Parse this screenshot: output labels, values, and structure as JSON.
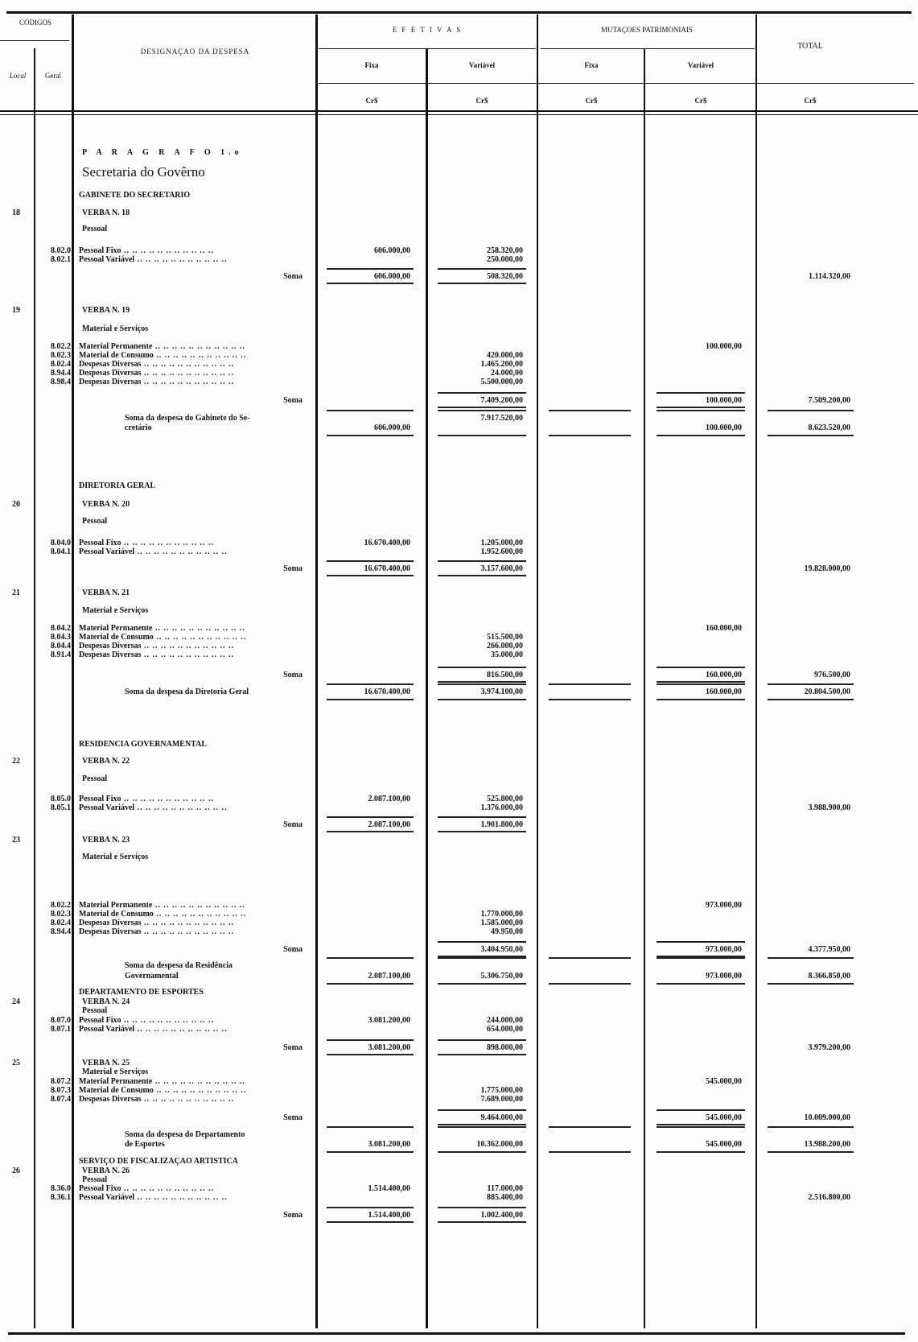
{
  "header": {
    "codigos": "CÓDIGOS",
    "local": "Local",
    "geral": "Geral",
    "designacao": "DESIGNAÇAO DA DESPESA",
    "efetivas": "E F E T  I V A S",
    "mutacoes": "MUTAÇOES  PATRIMONIAIS",
    "total": "TOTAL",
    "fixa": "Fixa",
    "variavel": "Variável",
    "currency": "Cr$"
  },
  "rows": [
    {
      "kind": "paragraph",
      "desc": "P A R A G R A F O  1.o"
    },
    {
      "kind": "title",
      "desc": "Secretaria do Govêrno"
    },
    {
      "kind": "section",
      "desc": "GABINETE DO SECRETARIO"
    },
    {
      "kind": "verba",
      "local": "18",
      "desc": "VERBA N. 18"
    },
    {
      "kind": "sub",
      "desc": "Pessoal"
    },
    {
      "kind": "item",
      "geral": "8.02.0",
      "desc": "Pessoal Fixo",
      "ef_fixa": "606.000,00",
      "ef_var": "258.320,00"
    },
    {
      "kind": "item",
      "geral": "8.02.1",
      "desc": "Pessoal Variável",
      "ef_var": "250.000,00"
    },
    {
      "kind": "soma",
      "desc": "Soma",
      "ef_fixa": "606.000,00",
      "ef_var": "508.320,00",
      "total": "1.114.320,00"
    },
    {
      "kind": "verba",
      "local": "19",
      "desc": "VERBA N. 19"
    },
    {
      "kind": "sub",
      "desc": "Material e Serviços"
    },
    {
      "kind": "item",
      "geral": "8.02.2",
      "desc": "Material Permanente",
      "mp_var": "100.000,00"
    },
    {
      "kind": "item",
      "geral": "8.02.3",
      "desc": "Material de Consumo",
      "ef_var": "420.000,00"
    },
    {
      "kind": "item",
      "geral": "8.02.4",
      "desc": "Despesas Diversas",
      "ef_var": "1.465.200,00"
    },
    {
      "kind": "item",
      "geral": "8.94.4",
      "desc": "Despesas Diversas",
      "ef_var": "24.000,00"
    },
    {
      "kind": "item",
      "geral": "8.98.4",
      "desc": "Despesas Diversas",
      "ef_var": "5.500.000,00"
    },
    {
      "kind": "soma",
      "desc": "Soma",
      "ef_var": "7.409.200,00",
      "mp_var": "100.000,00",
      "total": "7.509.200,00"
    },
    {
      "kind": "soma-despesa",
      "desc": "Soma da despesa do Gabinete do Se-",
      "ef_var": "7.917.520,00"
    },
    {
      "kind": "soma-despesa-end",
      "desc": "cretário",
      "ef_fixa": "606.000,00",
      "mp_var": "100.000,00",
      "total": "8.623.520,00"
    },
    {
      "kind": "section",
      "desc": "DIRETORIA GERAL"
    },
    {
      "kind": "verba",
      "local": "20",
      "desc": "VERBA N. 20"
    },
    {
      "kind": "sub",
      "desc": "Pessoal"
    },
    {
      "kind": "item",
      "geral": "8.04.0",
      "desc": "Pessoal Fixo",
      "ef_fixa": "16.670.400,00",
      "ef_var": "1.205.000,00"
    },
    {
      "kind": "item",
      "geral": "8.04.1",
      "desc": "Pessoal Variável",
      "ef_var": "1.952.600,00"
    },
    {
      "kind": "soma",
      "desc": "Soma",
      "ef_fixa": "16.670.400,00",
      "ef_var": "3.157.600,00",
      "total": "19.828.000,00"
    },
    {
      "kind": "verba",
      "local": "21",
      "desc": "VERBA N. 21"
    },
    {
      "kind": "sub",
      "desc": "Material e Serviços"
    },
    {
      "kind": "item",
      "geral": "8.04.2",
      "desc": "Material Permanente",
      "mp_var": "160.000,00"
    },
    {
      "kind": "item",
      "geral": "8.04.3",
      "desc": "Material de Consumo",
      "ef_var": "515.500,00"
    },
    {
      "kind": "item",
      "geral": "8.04.4",
      "desc": "Despesas Diversas",
      "ef_var": "266.000,00"
    },
    {
      "kind": "item",
      "geral": "8.91.4",
      "desc": "Despesas Diversas",
      "ef_var": "35.000,00"
    },
    {
      "kind": "soma",
      "desc": "Soma",
      "ef_var": "816.500,00",
      "mp_var": "160.000,00",
      "total": "976.500,00"
    },
    {
      "kind": "soma-despesa-single",
      "desc": "Soma da despesa da Diretoria Geral",
      "ef_fixa": "16.670.400,00",
      "ef_var": "3.974.100,00",
      "mp_var": "160.000,00",
      "total": "20.804.500,00"
    },
    {
      "kind": "section",
      "desc": "RESIDENCIA  GOVERNAMENTAL"
    },
    {
      "kind": "verba",
      "local": "22",
      "desc": "VERBA N. 22"
    },
    {
      "kind": "sub",
      "desc": "Pessoal"
    },
    {
      "kind": "item",
      "geral": "8.05.0",
      "desc": "Pessoal Fixo",
      "ef_fixa": "2.087.100,00",
      "ef_var": "525.800,00"
    },
    {
      "kind": "item",
      "geral": "8.05.1",
      "desc": "Pessoal Variável",
      "ef_var": "1.376.000,00",
      "total": "3.988.900,00"
    },
    {
      "kind": "soma",
      "desc": "Soma",
      "ef_fixa": "2.087.100,00",
      "ef_var": "1.901.800,00"
    },
    {
      "kind": "verba",
      "local": "23",
      "desc": "VERBA N. 23"
    },
    {
      "kind": "sub",
      "desc": "Material e Serviços"
    },
    {
      "kind": "item",
      "geral": "8.02.2",
      "desc": "Material Permanente",
      "mp_var": "973.000,00"
    },
    {
      "kind": "item",
      "geral": "8.02.3",
      "desc": "Material de Consumo",
      "ef_var": "1.770.000,00"
    },
    {
      "kind": "item",
      "geral": "8.02.4",
      "desc": "Despesas Diversas",
      "ef_var": "1.585.000,00"
    },
    {
      "kind": "item",
      "geral": "8.94.4",
      "desc": "Despesas Diversas",
      "ef_var": "49.950,00"
    },
    {
      "kind": "soma",
      "desc": "Soma",
      "ef_var": "3.404.950,00",
      "mp_var": "973.000,00",
      "total": "4.377.950,00"
    },
    {
      "kind": "soma-despesa",
      "desc": "Soma da despesa da Residência"
    },
    {
      "kind": "soma-despesa-end",
      "desc": "Governamental",
      "ef_fixa": "2.087.100,00",
      "ef_var": "5.306.750,00",
      "mp_var": "973.000,00",
      "total": "8.366.850,00"
    },
    {
      "kind": "section",
      "desc": "DEPARTAMENTO DE ESPORTES"
    },
    {
      "kind": "verba",
      "local": "24",
      "desc": "VERBA N. 24"
    },
    {
      "kind": "sub",
      "desc": "Pessoal"
    },
    {
      "kind": "item",
      "geral": "8.07.0",
      "desc": "Pessoal Fixo",
      "ef_fixa": "3.081.200,00",
      "ef_var": "244.000,00"
    },
    {
      "kind": "item",
      "geral": "8.07.1",
      "desc": "Pessoal Variável",
      "ef_var": "654.000,00"
    },
    {
      "kind": "soma",
      "desc": "Soma",
      "ef_fixa": "3.081.200,00",
      "ef_var": "898.000,00",
      "total": "3.979.200,00"
    },
    {
      "kind": "verba",
      "local": "25",
      "desc": "VERBA N. 25"
    },
    {
      "kind": "sub",
      "desc": "Material e Serviços"
    },
    {
      "kind": "item",
      "geral": "8.07.2",
      "desc": "Material Permanente",
      "mp_var": "545.000,00"
    },
    {
      "kind": "item",
      "geral": "8.07.3",
      "desc": "Material de Consumo",
      "ef_var": "1.775.000,00"
    },
    {
      "kind": "item",
      "geral": "8.07.4",
      "desc": "Despesas Diversas",
      "ef_var": "7.689.000,00"
    },
    {
      "kind": "soma",
      "desc": "Soma",
      "ef_var": "9.464.000,00",
      "mp_var": "545.000,00",
      "total": "10.009.000,00"
    },
    {
      "kind": "soma-despesa",
      "desc": "Soma da despesa do Departamento"
    },
    {
      "kind": "soma-despesa-end",
      "desc": "de Esportes",
      "ef_fixa": "3.081.200,00",
      "ef_var": "10.362.000,00",
      "mp_var": "545.000,00",
      "total": "13.988.200,00"
    },
    {
      "kind": "section",
      "desc": "SERVIÇO DE FISCALIZAÇAO  ARTISTICA"
    },
    {
      "kind": "verba",
      "local": "26",
      "desc": "VERBA N. 26"
    },
    {
      "kind": "sub",
      "desc": "Pessoal"
    },
    {
      "kind": "item",
      "geral": "8.36.0",
      "desc": "Pessoal Fixo",
      "ef_fixa": "1.514.400,00",
      "ef_var": "117.000,00"
    },
    {
      "kind": "item",
      "geral": "8.36.1",
      "desc": "Pessoal Variável",
      "ef_var": "885.400,00",
      "total": "2.516.800,00"
    },
    {
      "kind": "soma",
      "desc": "Soma",
      "ef_fixa": "1.514.400,00",
      "ef_var": "1.002.400,00"
    }
  ]
}
